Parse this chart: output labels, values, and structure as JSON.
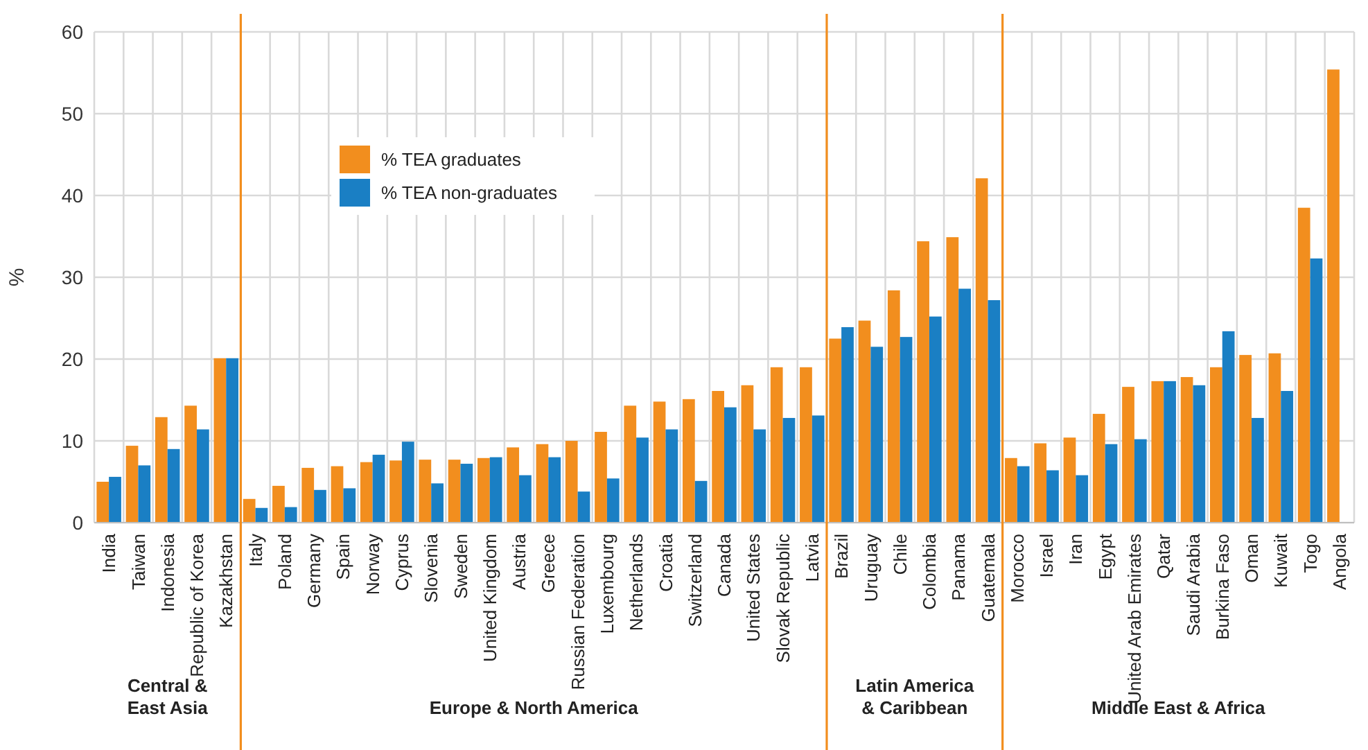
{
  "chart_data": {
    "type": "bar",
    "ylabel": "%",
    "categories": [
      "India",
      "Taiwan",
      "Indonesia",
      "Republic of Korea",
      "Kazakhstan",
      "Italy",
      "Poland",
      "Germany",
      "Spain",
      "Norway",
      "Cyprus",
      "Slovenia",
      "Sweden",
      "United Kingdom",
      "Austria",
      "Greece",
      "Russian Federation",
      "Luxembourg",
      "Netherlands",
      "Croatia",
      "Switzerland",
      "Canada",
      "United States",
      "Slovak Republic",
      "Latvia",
      "Brazil",
      "Uruguay",
      "Chile",
      "Colombia",
      "Panama",
      "Guatemala",
      "Morocco",
      "Israel",
      "Iran",
      "Egypt",
      "United Arab Emirates",
      "Qatar",
      "Saudi Arabia",
      "Burkina Faso",
      "Oman",
      "Kuwait",
      "Togo",
      "Angola"
    ],
    "series": [
      {
        "name": "% TEA graduates",
        "color": "#f28e1e",
        "values": [
          5.0,
          9.4,
          12.9,
          14.3,
          20.1,
          2.9,
          4.5,
          6.7,
          6.9,
          7.4,
          7.6,
          7.7,
          7.7,
          7.9,
          9.2,
          9.6,
          10.0,
          11.1,
          14.3,
          14.8,
          15.1,
          16.1,
          16.8,
          19.0,
          19.0,
          22.5,
          24.7,
          28.4,
          34.4,
          34.9,
          42.1,
          7.9,
          9.7,
          10.4,
          13.3,
          16.6,
          17.3,
          17.8,
          19.0,
          20.5,
          20.7,
          38.5,
          55.4
        ]
      },
      {
        "name": "% TEA non-graduates",
        "color": "#1a7fc4",
        "values": [
          5.6,
          7.0,
          9.0,
          11.4,
          20.1,
          1.8,
          1.9,
          4.0,
          4.2,
          8.3,
          9.9,
          4.8,
          7.2,
          8.0,
          5.8,
          8.0,
          3.8,
          5.4,
          10.4,
          11.4,
          5.1,
          14.1,
          11.4,
          12.8,
          13.1,
          23.9,
          21.5,
          22.7,
          25.2,
          28.6,
          27.2,
          6.9,
          6.4,
          5.8,
          9.6,
          10.2,
          17.3,
          16.8,
          23.4,
          12.8,
          16.1,
          32.3,
          null
        ]
      }
    ],
    "ylim": [
      0,
      60
    ],
    "yticks": [
      0,
      10,
      20,
      30,
      40,
      50,
      60
    ],
    "grid": true,
    "legend": "top left",
    "annotations": [
      "Central &\nEast Asia",
      "Europe & North America",
      "Latin America\n& Caribbean",
      "Middle East & Africa"
    ]
  }
}
